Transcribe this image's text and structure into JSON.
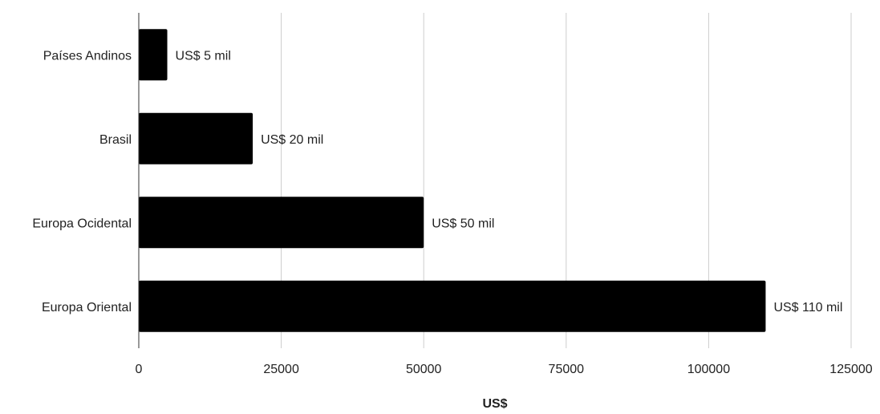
{
  "chart_data": {
    "type": "bar",
    "orientation": "horizontal",
    "categories": [
      "Países Andinos",
      "Brasil",
      "Europa Ocidental",
      "Europa Oriental"
    ],
    "values": [
      5000,
      20000,
      50000,
      110000
    ],
    "data_labels": [
      "US$ 5 mil",
      "US$ 20 mil",
      "US$ 50 mil",
      "US$ 110 mil"
    ],
    "xlabel": "US$",
    "ylabel": "",
    "xlim": [
      0,
      125000
    ],
    "xticks": [
      0,
      25000,
      50000,
      75000,
      100000,
      125000
    ],
    "xtick_labels": [
      "0",
      "25000",
      "50000",
      "75000",
      "100000",
      "125000"
    ],
    "grid": "vertical",
    "legend": "none",
    "colors": {
      "bar": "#000000",
      "grid": "#cccccc",
      "axis": "#333333",
      "text": "#222222"
    }
  }
}
